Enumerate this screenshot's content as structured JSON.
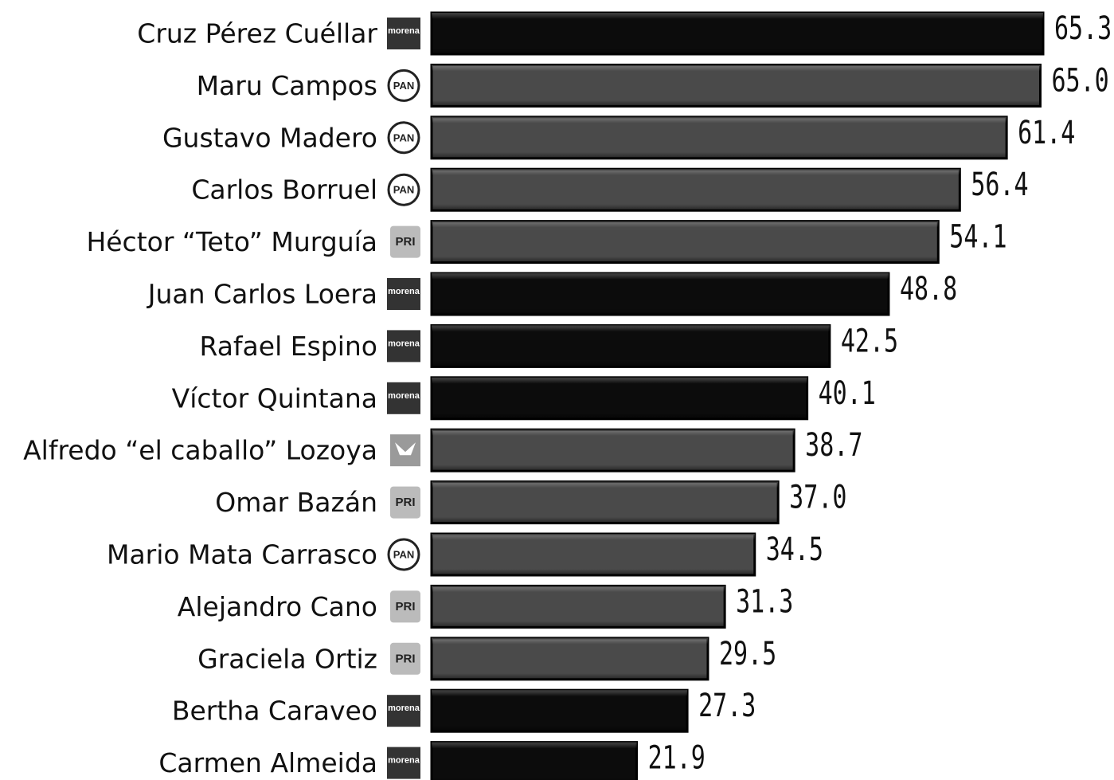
{
  "chart_data": {
    "type": "bar",
    "orientation": "horizontal",
    "categories": [
      "Cruz Pérez Cuéllar",
      "Maru Campos",
      "Gustavo Madero",
      "Carlos Borruel",
      "Héctor “Teto” Murguía",
      "Juan Carlos Loera",
      "Rafael Espino",
      "Víctor Quintana",
      "Alfredo “el caballo” Lozoya",
      "Omar Bazán",
      "Mario Mata Carrasco",
      "Alejandro Cano",
      "Graciela Ortiz",
      "Bertha Caraveo",
      "Carmen Almeida"
    ],
    "parties": [
      "morena",
      "PAN",
      "PAN",
      "PAN",
      "PRI",
      "morena",
      "morena",
      "morena",
      null,
      "PRI",
      "PAN",
      "PRI",
      "PRI",
      "morena",
      "morena"
    ],
    "values": [
      65.3,
      65.0,
      61.4,
      56.4,
      54.1,
      48.8,
      42.5,
      40.1,
      38.7,
      37.0,
      34.5,
      31.3,
      29.5,
      27.3,
      21.9
    ],
    "value_labels": [
      "65.3",
      "65.0",
      "61.4",
      "56.4",
      "54.1",
      "48.8",
      "42.5",
      "40.1",
      "38.7",
      "37.0",
      "34.5",
      "31.3",
      "29.5",
      "27.3",
      "21.9"
    ],
    "colors": [
      "#0c0c0c",
      "#4a4a4a",
      "#4a4a4a",
      "#4a4a4a",
      "#4a4a4a",
      "#0c0c0c",
      "#0c0c0c",
      "#0c0c0c",
      "#4a4a4a",
      "#4a4a4a",
      "#4a4a4a",
      "#4a4a4a",
      "#4a4a4a",
      "#0c0c0c",
      "#0c0c0c"
    ]
  }
}
